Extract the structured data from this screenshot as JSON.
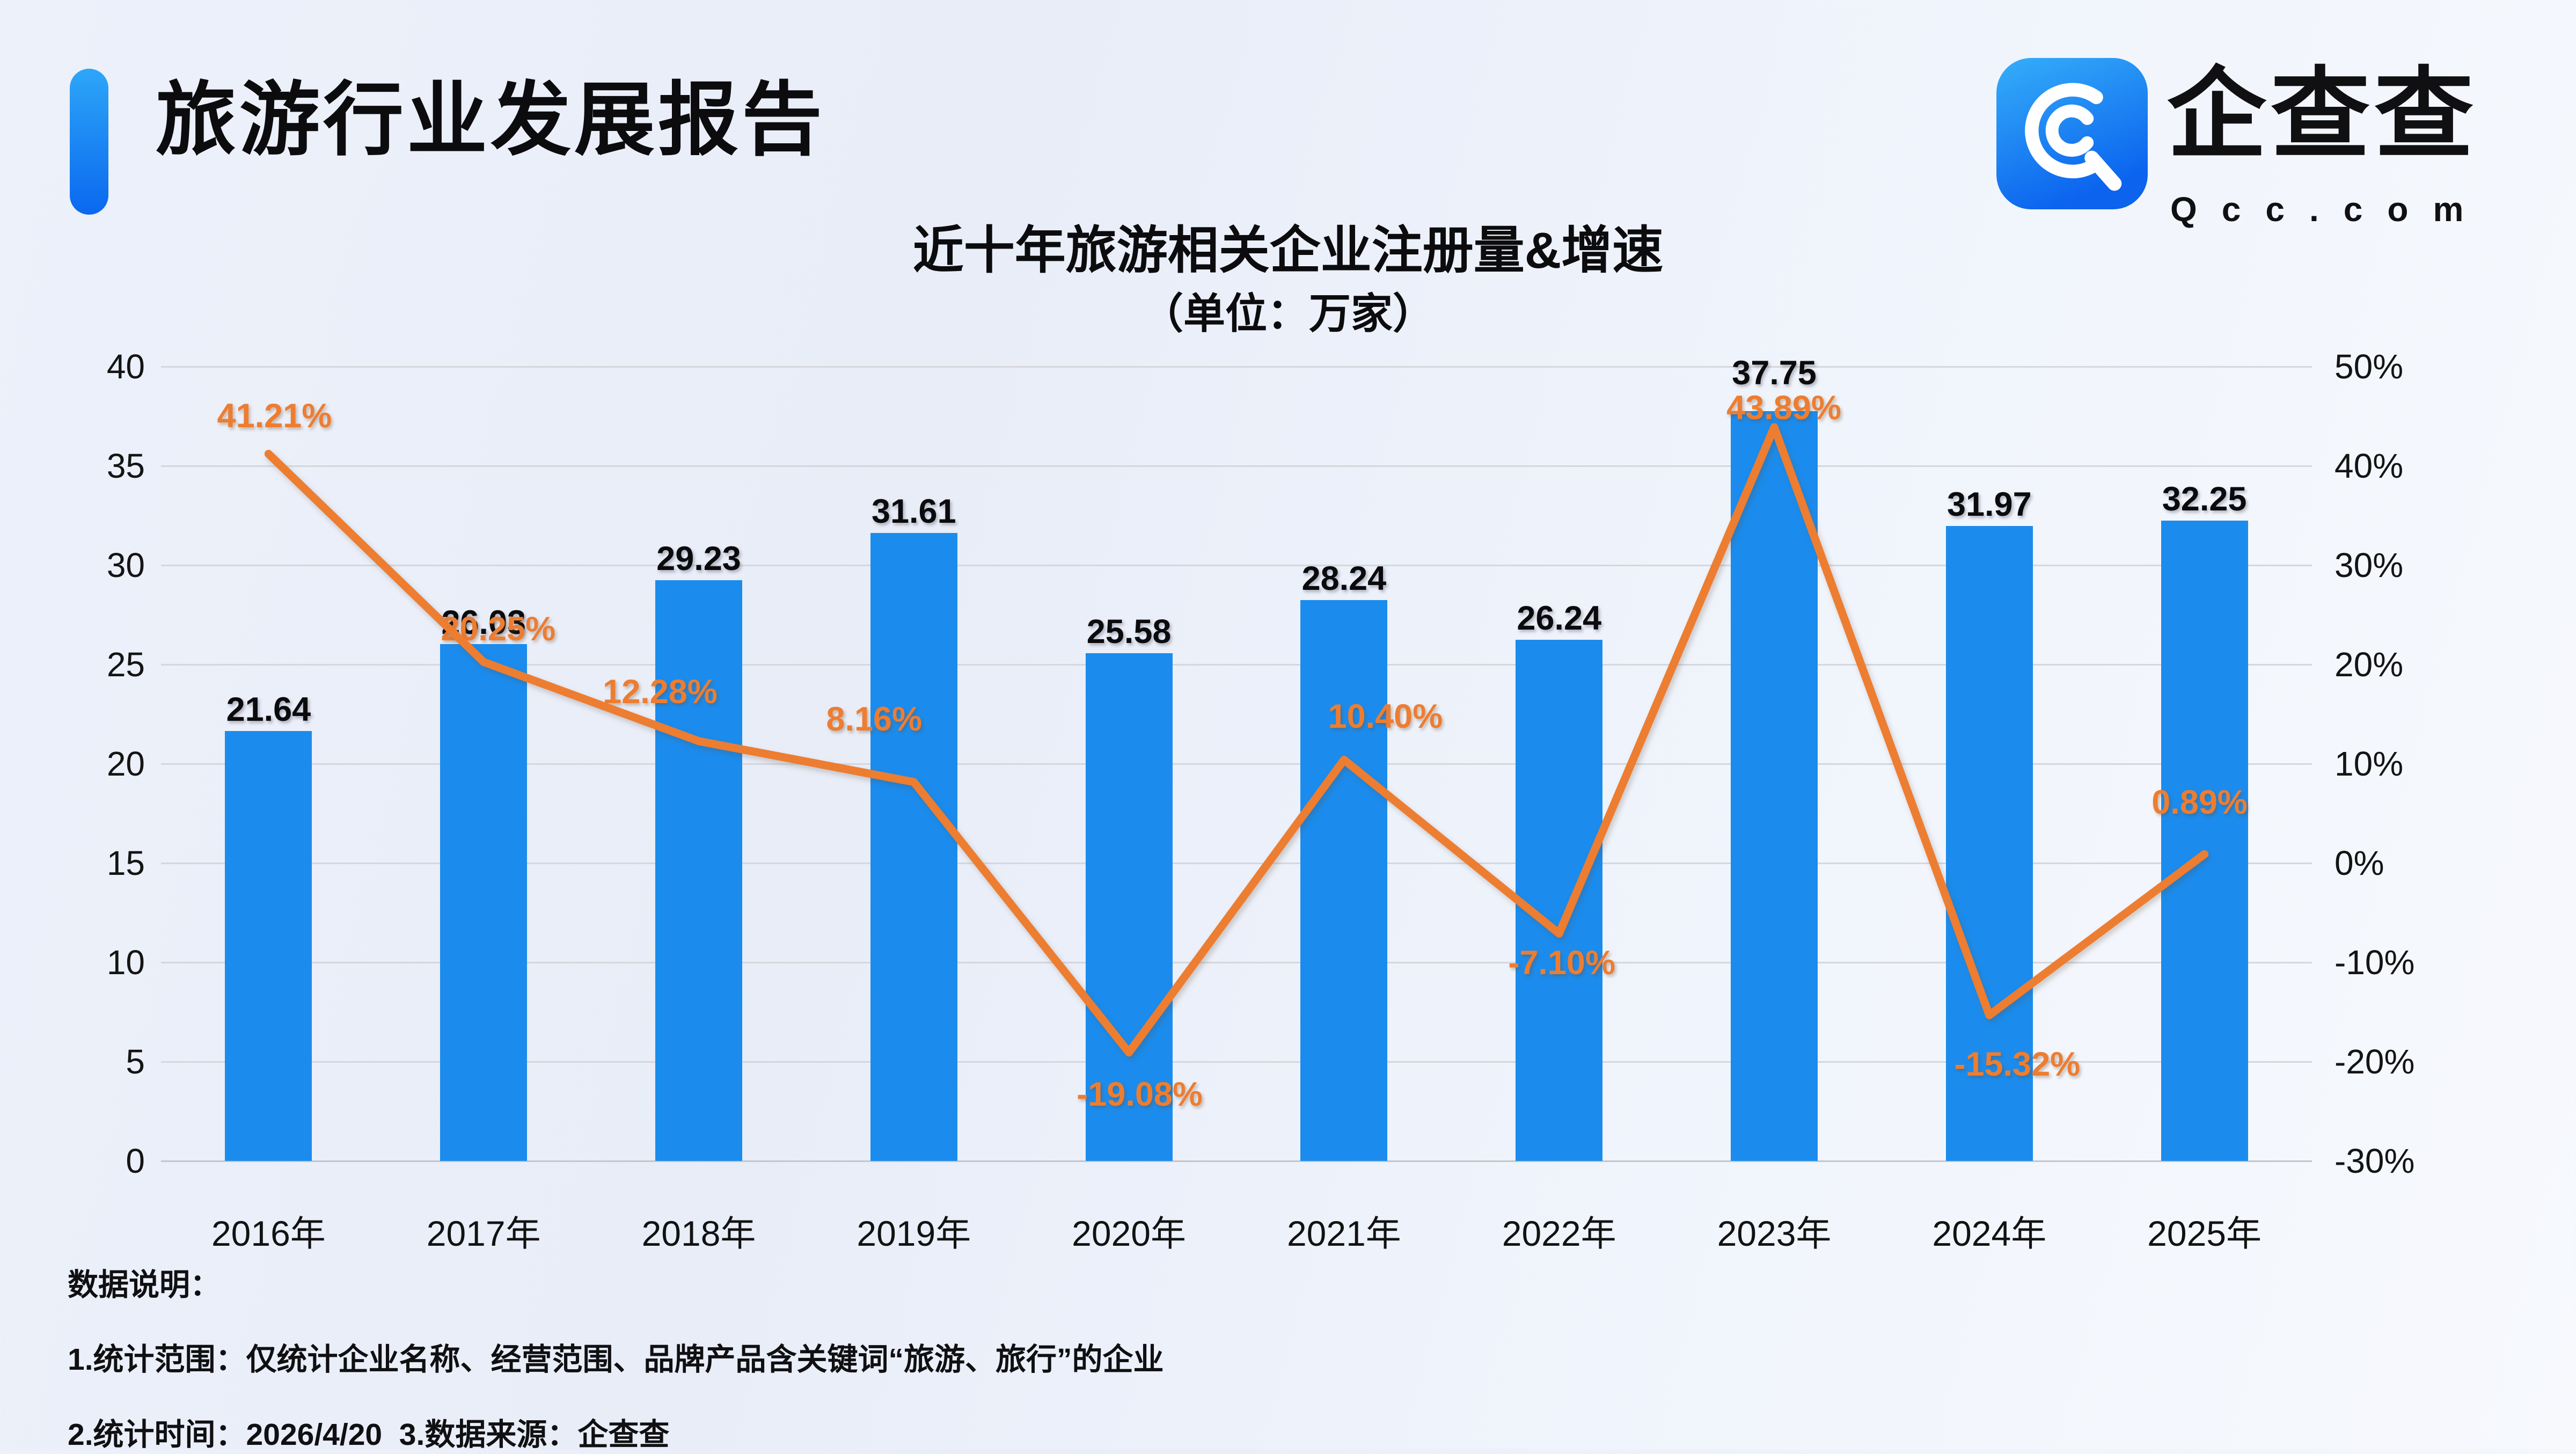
{
  "page": {
    "title": "旅游行业发展报告"
  },
  "logo": {
    "cn": "企查查",
    "en": "Qcc.com",
    "icon": "qcc-spiral-icon"
  },
  "colors": {
    "bar_blue": "#1b8ced",
    "line_orange": "#ed7d31",
    "accent_blue_top": "#2ea6f8",
    "accent_blue_bottom": "#0a68ef",
    "text_black": "#0c0c0e"
  },
  "chart_data": {
    "type": "bar+line",
    "title": "近十年旅游相关企业注册量&增速",
    "subtitle": "（单位：万家）",
    "unit": "万家",
    "categories": [
      "2016年",
      "2017年",
      "2018年",
      "2019年",
      "2020年",
      "2021年",
      "2022年",
      "2023年",
      "2024年",
      "2025年"
    ],
    "series": [
      {
        "name": "注册量",
        "type": "bar",
        "color": "#1b8ced",
        "values": [
          21.64,
          26.03,
          29.23,
          31.61,
          25.58,
          28.24,
          26.24,
          37.75,
          31.97,
          32.25
        ],
        "labels": [
          "21.64",
          "26.03",
          "29.23",
          "31.61",
          "25.58",
          "28.24",
          "26.24",
          "37.75",
          "31.97",
          "32.25"
        ]
      },
      {
        "name": "增速",
        "type": "line",
        "color": "#ed7d31",
        "values": [
          41.21,
          20.25,
          12.28,
          8.16,
          -19.08,
          10.4,
          -7.1,
          43.89,
          -15.32,
          0.89
        ],
        "labels": [
          "41.21%",
          "20.25%",
          "12.28%",
          "8.16%",
          "-19.08%",
          "10.40%",
          "-7.10%",
          "43.89%",
          "-15.32%",
          "0.89%"
        ]
      }
    ],
    "left_axis": {
      "min": 0,
      "max": 40,
      "ticks": [
        "40",
        "35",
        "30",
        "25",
        "20",
        "15",
        "10",
        "5",
        "0"
      ]
    },
    "right_axis": {
      "min": -30,
      "max": 50,
      "ticks": [
        "50%",
        "40%",
        "30%",
        "20%",
        "10%",
        "0%",
        "-10%",
        "-20%",
        "-30%"
      ]
    },
    "grid": true,
    "legend": "none"
  },
  "notes": {
    "heading": "数据说明：",
    "line1": "1.统计范围：仅统计企业名称、经营范围、品牌产品含关键词“旅游、旅行”的企业",
    "line2": "2.统计时间：2026/4/20  3.数据来源：企查查"
  }
}
